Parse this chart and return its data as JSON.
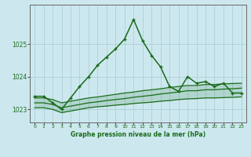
{
  "title": "Graphe pression niveau de la mer (hPa)",
  "xlim": [
    -0.5,
    23.5
  ],
  "ylim": [
    1022.6,
    1026.2
  ],
  "yticks": [
    1023,
    1024,
    1025
  ],
  "xticks": [
    0,
    1,
    2,
    3,
    4,
    5,
    6,
    7,
    8,
    9,
    10,
    11,
    12,
    13,
    14,
    15,
    16,
    17,
    18,
    19,
    20,
    21,
    22,
    23
  ],
  "bg_color": "#cce8ee",
  "grid_color": "#aacfd8",
  "line_color": "#1a6b1a",
  "main_series": [
    1023.4,
    1023.4,
    1023.2,
    1023.0,
    1023.35,
    1023.7,
    1024.0,
    1024.35,
    1024.6,
    1024.85,
    1025.15,
    1025.75,
    1025.1,
    1024.65,
    1024.3,
    1023.7,
    1023.55,
    1024.0,
    1023.8,
    1023.85,
    1023.7,
    1023.8,
    1023.5,
    1023.5
  ],
  "band_line1": [
    1023.05,
    1023.05,
    1023.0,
    1022.9,
    1022.95,
    1023.0,
    1023.05,
    1023.08,
    1023.1,
    1023.13,
    1023.15,
    1023.18,
    1023.2,
    1023.22,
    1023.25,
    1023.27,
    1023.3,
    1023.32,
    1023.33,
    1023.35,
    1023.35,
    1023.36,
    1023.37,
    1023.38
  ],
  "band_line2": [
    1023.2,
    1023.2,
    1023.15,
    1023.05,
    1023.1,
    1023.15,
    1023.2,
    1023.23,
    1023.27,
    1023.3,
    1023.33,
    1023.37,
    1023.4,
    1023.43,
    1023.47,
    1023.5,
    1023.53,
    1023.57,
    1023.57,
    1023.6,
    1023.6,
    1023.62,
    1023.63,
    1023.65
  ],
  "band_line3": [
    1023.35,
    1023.35,
    1023.3,
    1023.2,
    1023.25,
    1023.3,
    1023.35,
    1023.38,
    1023.42,
    1023.46,
    1023.5,
    1023.53,
    1023.57,
    1023.6,
    1023.63,
    1023.67,
    1023.7,
    1023.73,
    1023.73,
    1023.76,
    1023.76,
    1023.78,
    1023.79,
    1023.8
  ]
}
